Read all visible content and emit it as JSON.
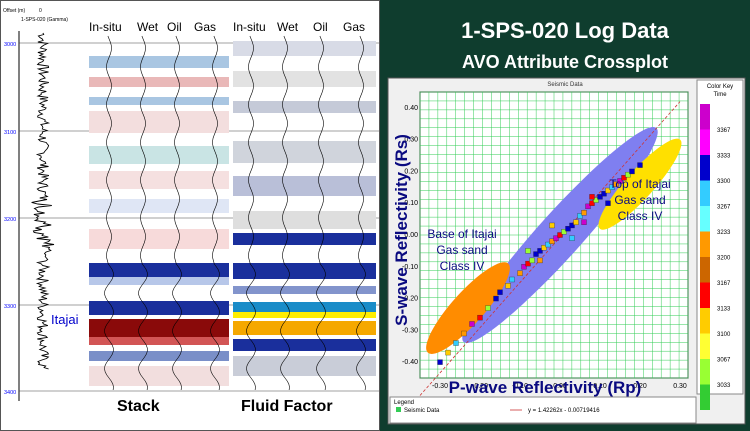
{
  "left": {
    "log_header": {
      "top": "Offset (m)",
      "mid": "0",
      "curve": "1-SPS-020 (Gamma)"
    },
    "depth_labels": [
      "3000",
      "3100",
      "3200",
      "3300",
      "3400"
    ],
    "stack_headers": [
      "In-situ",
      "Wet",
      "Oil",
      "Gas"
    ],
    "ff_headers": [
      "In-situ",
      "Wet",
      "Oil",
      "Gas"
    ],
    "itajai_label": "Itajai",
    "stack_label": "Stack",
    "fluid_factor_label": "Fluid Factor",
    "colors": {
      "blue": "#1a2f9c",
      "red": "#8a0a0a",
      "yellow": "#ffee00",
      "orange": "#f5a800",
      "pink": "#e9b8b8",
      "lightblue": "#a9c6e2"
    }
  },
  "right": {
    "title": "1-SPS-020 Log Data",
    "subtitle": "AVO Attribute Crossplot",
    "plot_header": "Seismic Data",
    "color_key": {
      "title": "Color Key",
      "subtitle": "Time",
      "values": [
        "3367",
        "3333",
        "3300",
        "3267",
        "3233",
        "3200",
        "3167",
        "3133",
        "3100",
        "3067",
        "3033"
      ],
      "colors": [
        "#cc00cc",
        "#ff00ff",
        "#0000cc",
        "#33ccff",
        "#66ffff",
        "#ff9900",
        "#cc6600",
        "#ff0000",
        "#ffcc00",
        "#ffff33",
        "#99ff33",
        "#33cc33"
      ]
    },
    "annotations": {
      "base": [
        "Base of Itajai",
        "Gas sand",
        "Class IV"
      ],
      "top": [
        "Top of Itajai",
        "Gas sand",
        "Class IV"
      ]
    },
    "legend": {
      "title": "Legend",
      "series": "Seismic Data",
      "fit": "y = 1.42262x - 0.00719416"
    }
  },
  "chart_data": {
    "type": "scatter",
    "title": "AVO Attribute Crossplot",
    "xlabel": "P-wave Reflectivity (Rp)",
    "ylabel": "S-wave Reflectivity (Rs)",
    "xlim": [
      -0.35,
      0.32
    ],
    "ylim": [
      -0.45,
      0.45
    ],
    "xticks": [
      "-0.30",
      "-0.20",
      "-0.10",
      "0.00",
      "0.10",
      "0.20",
      "0.30"
    ],
    "yticks": [
      "0.40",
      "0.30",
      "0.20",
      "0.10",
      "0.00",
      "-0.10",
      "-0.20",
      "-0.30",
      "-0.40"
    ],
    "grid": true,
    "fit_line": {
      "slope": 1.42262,
      "intercept": -0.00719416
    },
    "ellipses": [
      {
        "name": "background",
        "color": "#7f7ff0",
        "cx": 0.0,
        "cy": 0.0,
        "rx": 0.36,
        "ry": 0.055,
        "angle_deg": 48
      },
      {
        "name": "base",
        "color": "#ff8c00",
        "cx": -0.23,
        "cy": -0.23,
        "rx": 0.15,
        "ry": 0.04,
        "angle_deg": 48
      },
      {
        "name": "top",
        "color": "#ffe000",
        "cx": 0.2,
        "cy": 0.16,
        "rx": 0.15,
        "ry": 0.035,
        "angle_deg": 48
      }
    ],
    "series": [
      {
        "name": "Seismic Data",
        "points": [
          [
            -0.3,
            -0.4
          ],
          [
            -0.28,
            -0.37
          ],
          [
            -0.26,
            -0.34
          ],
          [
            -0.24,
            -0.31
          ],
          [
            -0.22,
            -0.28
          ],
          [
            -0.2,
            -0.26
          ],
          [
            -0.18,
            -0.23
          ],
          [
            -0.16,
            -0.2
          ],
          [
            -0.15,
            -0.18
          ],
          [
            -0.13,
            -0.16
          ],
          [
            -0.12,
            -0.14
          ],
          [
            -0.1,
            -0.12
          ],
          [
            -0.09,
            -0.1
          ],
          [
            -0.08,
            -0.09
          ],
          [
            -0.07,
            -0.08
          ],
          [
            -0.06,
            -0.06
          ],
          [
            -0.05,
            -0.05
          ],
          [
            -0.04,
            -0.04
          ],
          [
            -0.03,
            -0.03
          ],
          [
            -0.02,
            -0.02
          ],
          [
            -0.01,
            -0.01
          ],
          [
            0.0,
            0.0
          ],
          [
            0.01,
            0.01
          ],
          [
            0.02,
            0.02
          ],
          [
            0.03,
            0.03
          ],
          [
            0.04,
            0.04
          ],
          [
            0.05,
            0.06
          ],
          [
            0.06,
            0.07
          ],
          [
            0.07,
            0.09
          ],
          [
            0.08,
            0.1
          ],
          [
            0.09,
            0.11
          ],
          [
            0.1,
            0.12
          ],
          [
            0.11,
            0.13
          ],
          [
            0.12,
            0.14
          ],
          [
            0.13,
            0.15
          ],
          [
            0.14,
            0.16
          ],
          [
            0.15,
            0.17
          ],
          [
            0.16,
            0.18
          ],
          [
            0.17,
            0.19
          ],
          [
            0.18,
            0.2
          ],
          [
            0.2,
            0.22
          ],
          [
            -0.02,
            0.03
          ],
          [
            0.03,
            -0.01
          ],
          [
            -0.05,
            -0.08
          ],
          [
            0.06,
            0.04
          ],
          [
            0.08,
            0.12
          ],
          [
            -0.08,
            -0.05
          ],
          [
            0.12,
            0.1
          ]
        ]
      }
    ]
  }
}
